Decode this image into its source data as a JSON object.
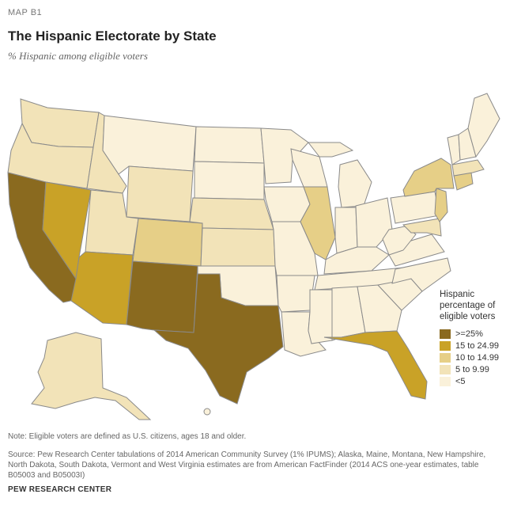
{
  "header": {
    "kicker": "MAP B1",
    "title": "The Hispanic Electorate by State",
    "subtitle": "% Hispanic among eligible voters"
  },
  "colors": {
    "c25": "#8a6a1f",
    "c15": "#c9a227",
    "c10": "#e6cf87",
    "c5": "#f2e3b8",
    "c0": "#faf1da",
    "border": "#8a8a8a"
  },
  "legend": {
    "title_line1": "Hispanic",
    "title_line2": "percentage of",
    "title_line3": "eligible voters",
    "items": [
      {
        "label": ">=25%",
        "color": "#8a6a1f"
      },
      {
        "label": "15 to 24.99",
        "color": "#c9a227"
      },
      {
        "label": "10 to 14.99",
        "color": "#e6cf87"
      },
      {
        "label": "5 to 9.99",
        "color": "#f2e3b8"
      },
      {
        "label": "<5",
        "color": "#faf1da"
      }
    ]
  },
  "footer": {
    "note": "Note: Eligible voters are defined as U.S. citizens, ages 18 and older.",
    "source": "Source: Pew Research Center tabulations of 2014 American Community Survey (1% IPUMS); Alaska, Maine, Montana, New Hampshire, North Dakota, South Dakota, Vermont and West Virginia estimates are from American FactFinder (2014 ACS one-year estimates, table B05003 and B05003I)",
    "credit": "PEW RESEARCH CENTER"
  }
}
